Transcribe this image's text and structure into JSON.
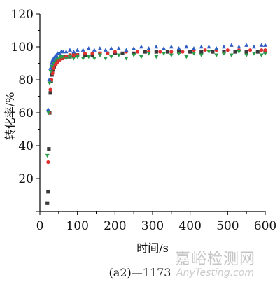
{
  "chart_data": {
    "type": "scatter",
    "title": "",
    "xlabel": "时间/s",
    "ylabel": "转化率/%",
    "xlim": [
      0,
      600
    ],
    "ylim": [
      0,
      120
    ],
    "xticks": [
      "0",
      "100",
      "200",
      "300",
      "400",
      "500",
      "600"
    ],
    "yticks": [
      "20",
      "40",
      "60",
      "80",
      "100",
      "120"
    ],
    "x_tick_values": [
      0,
      100,
      200,
      300,
      400,
      500,
      600
    ],
    "y_tick_values": [
      20,
      40,
      60,
      80,
      100,
      120
    ],
    "grid": false,
    "legend": "none",
    "series": [
      {
        "color": "#3a3a3a",
        "marker": "square",
        "x": [
          20,
          22,
          24,
          26,
          28,
          30,
          32,
          35,
          38,
          42,
          46,
          50,
          55,
          60,
          70,
          80,
          90,
          100,
          120,
          140,
          160,
          180,
          200,
          220,
          250,
          280,
          310,
          340,
          370,
          400,
          430,
          460,
          490,
          520,
          550,
          580,
          600
        ],
        "y": [
          5,
          12,
          38,
          60,
          72,
          79,
          83,
          86,
          88,
          90,
          91,
          92,
          93,
          93,
          94,
          94,
          95,
          95,
          95,
          95,
          96,
          96,
          96,
          96,
          96,
          97,
          97,
          97,
          97,
          97,
          97,
          97,
          97,
          97,
          97,
          97,
          97
        ]
      },
      {
        "color": "#e03030",
        "marker": "circle",
        "x": [
          22,
          25,
          28,
          31,
          34,
          37,
          40,
          44,
          48,
          52,
          57,
          62,
          70,
          80,
          90,
          100,
          120,
          140,
          160,
          180,
          200,
          230,
          260,
          290,
          320,
          350,
          380,
          410,
          440,
          470,
          500,
          530,
          560,
          590,
          600
        ],
        "y": [
          30,
          60,
          74,
          80,
          84,
          87,
          89,
          90,
          91,
          92,
          93,
          93,
          94,
          95,
          95,
          95,
          96,
          96,
          96,
          96,
          97,
          97,
          97,
          97,
          97,
          97,
          97,
          98,
          98,
          98,
          98,
          98,
          98,
          98,
          98
        ]
      },
      {
        "color": "#2a9d4a",
        "marker": "triangle-down",
        "x": [
          20,
          23,
          26,
          29,
          32,
          35,
          38,
          41,
          45,
          50,
          55,
          60,
          70,
          80,
          90,
          100,
          115,
          130,
          145,
          160,
          175,
          190,
          210,
          230,
          250,
          270,
          290,
          310,
          330,
          350,
          370,
          390,
          410,
          430,
          450,
          470,
          490,
          510,
          530,
          550,
          570,
          590,
          600
        ],
        "y": [
          34,
          60,
          78,
          85,
          88,
          90,
          91,
          92,
          93,
          93,
          94,
          94,
          93,
          94,
          93,
          94,
          93,
          94,
          93,
          95,
          93,
          94,
          95,
          93,
          95,
          94,
          96,
          94,
          96,
          95,
          96,
          94,
          96,
          95,
          97,
          95,
          96,
          95,
          97,
          95,
          96,
          95,
          96
        ]
      },
      {
        "color": "#2f5fc4",
        "marker": "triangle-up",
        "x": [
          22,
          25,
          28,
          31,
          34,
          37,
          40,
          44,
          48,
          52,
          57,
          62,
          70,
          80,
          90,
          100,
          115,
          130,
          145,
          160,
          175,
          190,
          210,
          230,
          250,
          270,
          290,
          310,
          330,
          350,
          370,
          390,
          410,
          430,
          450,
          470,
          490,
          510,
          530,
          550,
          570,
          590,
          600
        ],
        "y": [
          62,
          80,
          87,
          90,
          92,
          93,
          94,
          95,
          96,
          96,
          97,
          97,
          97,
          98,
          97,
          98,
          98,
          99,
          98,
          99,
          98,
          99,
          99,
          98,
          99,
          100,
          99,
          100,
          99,
          100,
          99,
          100,
          99,
          100,
          100,
          99,
          100,
          101,
          100,
          101,
          100,
          101,
          101
        ]
      }
    ]
  },
  "caption": "(a2)—1173",
  "watermark": {
    "cn": "嘉峪检测网",
    "en": "AnyTesting.com"
  }
}
